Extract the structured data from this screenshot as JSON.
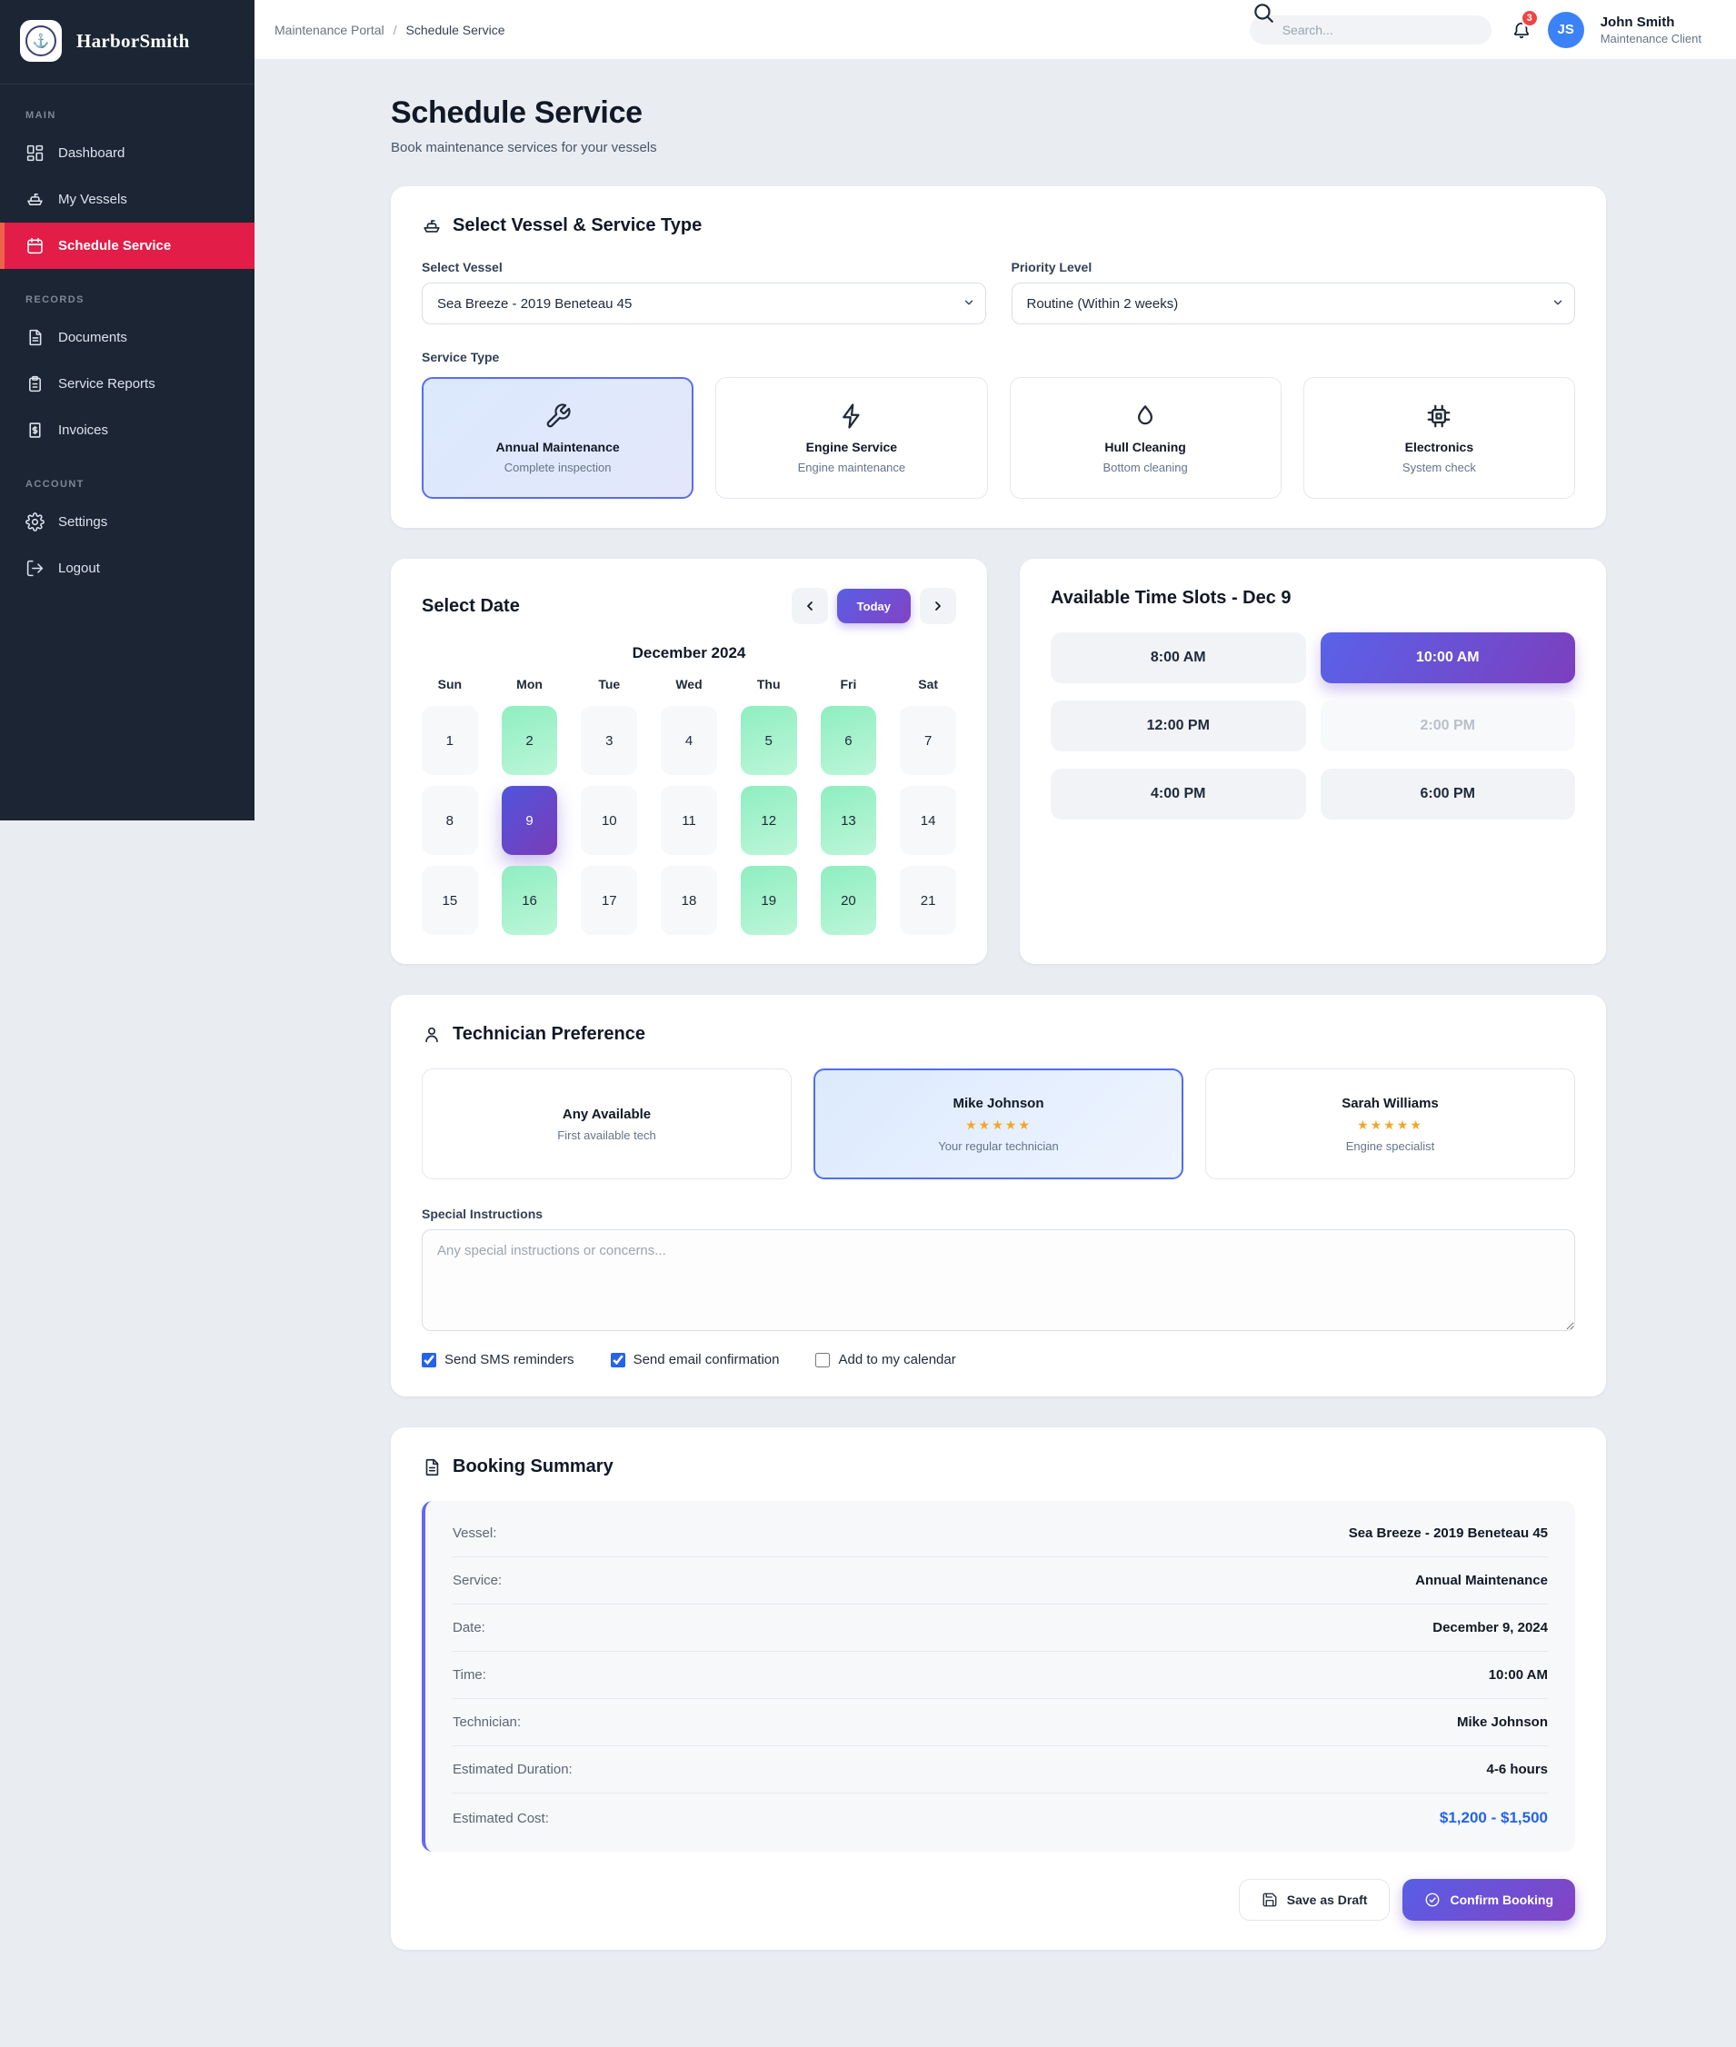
{
  "brand": {
    "name": "HarborSmith"
  },
  "sidebar": {
    "sections": [
      {
        "label": "MAIN",
        "items": [
          {
            "label": "Dashboard",
            "icon": "dashboard-icon",
            "active": false
          },
          {
            "label": "My Vessels",
            "icon": "boat-icon",
            "active": false
          },
          {
            "label": "Schedule Service",
            "icon": "calendar-icon",
            "active": true
          }
        ]
      },
      {
        "label": "RECORDS",
        "items": [
          {
            "label": "Documents",
            "icon": "document-icon",
            "active": false
          },
          {
            "label": "Service Reports",
            "icon": "clipboard-icon",
            "active": false
          },
          {
            "label": "Invoices",
            "icon": "invoice-icon",
            "active": false
          }
        ]
      },
      {
        "label": "ACCOUNT",
        "items": [
          {
            "label": "Settings",
            "icon": "gear-icon",
            "active": false
          },
          {
            "label": "Logout",
            "icon": "logout-icon",
            "active": false
          }
        ]
      }
    ]
  },
  "header": {
    "breadcrumb_parent": "Maintenance Portal",
    "breadcrumb_current": "Schedule Service",
    "search_placeholder": "Search...",
    "notification_count": "3",
    "user": {
      "initials": "JS",
      "name": "John Smith",
      "role": "Maintenance Client"
    }
  },
  "page": {
    "title": "Schedule Service",
    "subtitle": "Book maintenance services for your vessels"
  },
  "vessel_card": {
    "title": "Select Vessel & Service Type",
    "vessel_label": "Select Vessel",
    "vessel_value": "Sea Breeze - 2019 Beneteau 45",
    "priority_label": "Priority Level",
    "priority_value": "Routine (Within 2 weeks)",
    "service_type_label": "Service Type",
    "services": [
      {
        "name": "Annual Maintenance",
        "desc": "Complete inspection",
        "icon": "wrench-icon",
        "selected": true
      },
      {
        "name": "Engine Service",
        "desc": "Engine maintenance",
        "icon": "bolt-icon",
        "selected": false
      },
      {
        "name": "Hull Cleaning",
        "desc": "Bottom cleaning",
        "icon": "droplet-icon",
        "selected": false
      },
      {
        "name": "Electronics",
        "desc": "System check",
        "icon": "chip-icon",
        "selected": false
      }
    ]
  },
  "date_card": {
    "title": "Select Date",
    "today_label": "Today",
    "month": "December 2024",
    "day_headers": [
      "Sun",
      "Mon",
      "Tue",
      "Wed",
      "Thu",
      "Fri",
      "Sat"
    ],
    "days": [
      {
        "n": 1,
        "state": "default"
      },
      {
        "n": 2,
        "state": "available"
      },
      {
        "n": 3,
        "state": "default"
      },
      {
        "n": 4,
        "state": "default"
      },
      {
        "n": 5,
        "state": "available"
      },
      {
        "n": 6,
        "state": "available"
      },
      {
        "n": 7,
        "state": "default"
      },
      {
        "n": 8,
        "state": "default"
      },
      {
        "n": 9,
        "state": "selected"
      },
      {
        "n": 10,
        "state": "default"
      },
      {
        "n": 11,
        "state": "default"
      },
      {
        "n": 12,
        "state": "available"
      },
      {
        "n": 13,
        "state": "available"
      },
      {
        "n": 14,
        "state": "default"
      },
      {
        "n": 15,
        "state": "default"
      },
      {
        "n": 16,
        "state": "available"
      },
      {
        "n": 17,
        "state": "default"
      },
      {
        "n": 18,
        "state": "default"
      },
      {
        "n": 19,
        "state": "available"
      },
      {
        "n": 20,
        "state": "available"
      },
      {
        "n": 21,
        "state": "default"
      }
    ]
  },
  "time_card": {
    "title": "Available Time Slots - Dec 9",
    "slots": [
      {
        "label": "8:00 AM",
        "state": "default"
      },
      {
        "label": "10:00 AM",
        "state": "selected"
      },
      {
        "label": "12:00 PM",
        "state": "default"
      },
      {
        "label": "2:00 PM",
        "state": "disabled"
      },
      {
        "label": "4:00 PM",
        "state": "default"
      },
      {
        "label": "6:00 PM",
        "state": "default"
      }
    ]
  },
  "technician_card": {
    "title": "Technician Preference",
    "options": [
      {
        "name": "Any Available",
        "stars": "",
        "desc": "First available tech",
        "selected": false
      },
      {
        "name": "Mike Johnson",
        "stars": "★★★★★",
        "desc": "Your regular technician",
        "selected": true
      },
      {
        "name": "Sarah Williams",
        "stars": "★★★★★",
        "desc": "Engine specialist",
        "selected": false
      }
    ],
    "special_label": "Special Instructions",
    "special_placeholder": "Any special instructions or concerns...",
    "checkboxes": [
      {
        "label": "Send SMS reminders",
        "checked": true
      },
      {
        "label": "Send email confirmation",
        "checked": true
      },
      {
        "label": "Add to my calendar",
        "checked": false
      }
    ]
  },
  "summary_card": {
    "title": "Booking Summary",
    "rows": [
      {
        "label": "Vessel:",
        "value": "Sea Breeze - 2019 Beneteau 45",
        "highlight": false
      },
      {
        "label": "Service:",
        "value": "Annual Maintenance",
        "highlight": false
      },
      {
        "label": "Date:",
        "value": "December 9, 2024",
        "highlight": false
      },
      {
        "label": "Time:",
        "value": "10:00 AM",
        "highlight": false
      },
      {
        "label": "Technician:",
        "value": "Mike Johnson",
        "highlight": false
      },
      {
        "label": "Estimated Duration:",
        "value": "4-6 hours",
        "highlight": false
      },
      {
        "label": "Estimated Cost:",
        "value": "$1,200 - $1,500",
        "highlight": true
      }
    ],
    "save_draft_label": "Save as Draft",
    "confirm_label": "Confirm Booking"
  },
  "colors": {
    "sidebar_bg": "#1b2534",
    "active_red": "#e11d48",
    "accent_gradient_start": "#585ee6",
    "accent_gradient_end": "#8343c3",
    "available_green": "#8feec0",
    "cost_blue": "#2563eb",
    "avatar_blue": "#3b82f6",
    "badge_red": "#ef4444",
    "star_gold": "#f5a524"
  }
}
